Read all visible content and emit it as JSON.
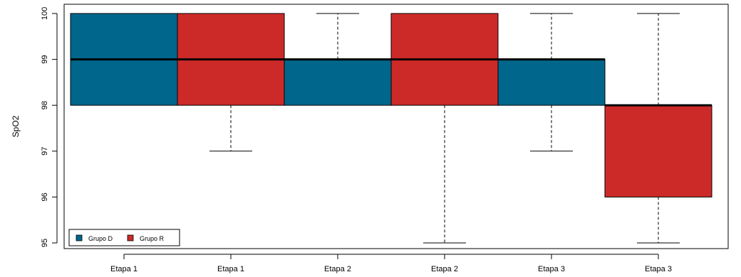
{
  "chart_data": {
    "type": "box",
    "ylabel": "SpO2",
    "xlabel": "",
    "title": "",
    "ylim": [
      95,
      100
    ],
    "yticks": [
      "95",
      "96",
      "97",
      "98",
      "99",
      "100"
    ],
    "boxes": [
      {
        "label": "Etapa 1",
        "group": "Grupo D",
        "whisker_low": 98,
        "q1": 98,
        "median": 99,
        "q3": 100,
        "whisker_high": 100
      },
      {
        "label": "Etapa 1",
        "group": "Grupo R",
        "whisker_low": 97,
        "q1": 98,
        "median": 99,
        "q3": 100,
        "whisker_high": 100
      },
      {
        "label": "Etapa 2",
        "group": "Grupo D",
        "whisker_low": 98,
        "q1": 98,
        "median": 99,
        "q3": 99,
        "whisker_high": 100
      },
      {
        "label": "Etapa 2",
        "group": "Grupo R",
        "whisker_low": 95,
        "q1": 98,
        "median": 99,
        "q3": 100,
        "whisker_high": 100
      },
      {
        "label": "Etapa 3",
        "group": "Grupo D",
        "whisker_low": 97,
        "q1": 98,
        "median": 99,
        "q3": 99,
        "whisker_high": 100
      },
      {
        "label": "Etapa 3",
        "group": "Grupo R",
        "whisker_low": 95,
        "q1": 96,
        "median": 98,
        "q3": 98,
        "whisker_high": 100
      }
    ],
    "legend": {
      "position": "bottom-left",
      "items": [
        {
          "name": "Grupo D",
          "color": "#00668C"
        },
        {
          "name": "Grupo R",
          "color": "#CC2A29"
        }
      ]
    },
    "grid": false
  }
}
